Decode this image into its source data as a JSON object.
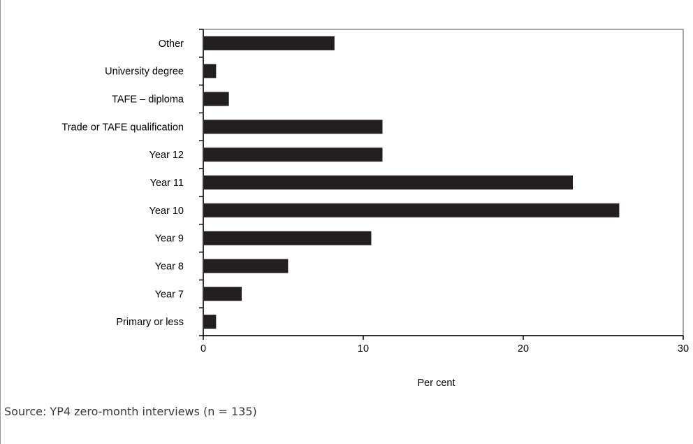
{
  "figure": {
    "title": "",
    "source": "Source: YP4 zero-month interviews (n = 135)"
  },
  "chart_data": {
    "type": "bar",
    "orientation": "horizontal",
    "categories": [
      "Other",
      "University degree",
      "TAFE – diploma",
      "Trade or TAFE qualification",
      "Year 12",
      "Year 11",
      "Year 10",
      "Year 9",
      "Year 8",
      "Year 7",
      "Primary or less"
    ],
    "values": [
      8.2,
      0.8,
      1.6,
      11.2,
      11.2,
      23.1,
      26.0,
      10.5,
      5.3,
      2.4,
      0.8
    ],
    "xlabel": "Per cent",
    "ylabel": "",
    "xlim": [
      0,
      30
    ],
    "xticks": [
      0,
      10,
      20,
      30
    ],
    "xtick_labels": [
      "0",
      "10",
      "20",
      "30"
    ],
    "bar_color": "#231f20",
    "grid": false,
    "legend": "none"
  }
}
